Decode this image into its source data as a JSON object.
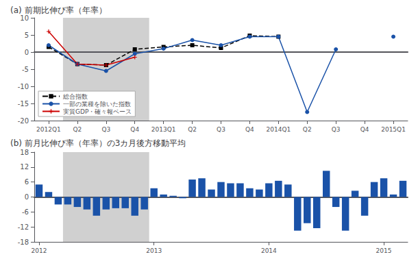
{
  "chart_data": [
    {
      "type": "line",
      "title": "(a) 前期比伸び率（年率）",
      "categories": [
        "2012Q1",
        "Q2",
        "Q3",
        "Q4",
        "2013Q1",
        "Q2",
        "Q3",
        "Q4",
        "2014Q1",
        "Q2",
        "Q3",
        "Q4",
        "2015Q1"
      ],
      "series": [
        {
          "name": "総合指数",
          "color": "#000000",
          "marker": "square",
          "line_style": "dashed",
          "values": [
            1.5,
            -3.5,
            -3.8,
            0.8,
            1.5,
            2.0,
            1.2,
            4.8,
            4.5,
            null,
            null,
            null,
            null
          ]
        },
        {
          "name": "一部の業種を除いた指数",
          "color": "#1a52a8",
          "marker": "circle",
          "line_style": "solid",
          "values": [
            2.0,
            -3.5,
            -5.5,
            -0.5,
            1.0,
            3.5,
            2.0,
            4.5,
            4.5,
            -17.5,
            0.8,
            null,
            4.5
          ]
        },
        {
          "name": "実質GDP・確々報ベース",
          "color": "#cc0000",
          "marker": "plus",
          "line_style": "solid",
          "values": [
            6.0,
            -3.5,
            -3.8,
            -1.5,
            null,
            null,
            null,
            null,
            null,
            null,
            null,
            null,
            null
          ]
        }
      ],
      "ylim": [
        -20,
        10
      ],
      "yticks": [
        -20,
        -15,
        -10,
        -5,
        0,
        5,
        10
      ],
      "grid": false,
      "legend": "lower left",
      "shaded": [
        false,
        true,
        true,
        true,
        false,
        false,
        false,
        false,
        false,
        false,
        false,
        false,
        false
      ],
      "shade_color": "#d0d0d0"
    },
    {
      "type": "bar",
      "title": "(b) 前月比伸び率（年率）の3カ月後方移動平均",
      "categories": [
        "2012",
        null,
        null,
        null,
        null,
        null,
        null,
        null,
        null,
        null,
        null,
        null,
        "2013",
        null,
        null,
        null,
        null,
        null,
        null,
        null,
        null,
        null,
        null,
        null,
        "2014",
        null,
        null,
        null,
        null,
        null,
        null,
        null,
        null,
        null,
        null,
        null,
        "2015",
        null,
        null
      ],
      "values": [
        5.0,
        2.0,
        -3.0,
        -3.0,
        -4.0,
        -5.0,
        -7.5,
        -5.0,
        -4.5,
        -4.5,
        -7.5,
        -5.0,
        3.5,
        1.0,
        0.5,
        -0.5,
        7.0,
        7.5,
        3.0,
        6.0,
        5.5,
        5.5,
        3.5,
        3.0,
        5.5,
        6.5,
        5.0,
        -13.5,
        -10.5,
        -12.5,
        10.5,
        -4.0,
        -13.5,
        2.5,
        -7.5,
        6.0,
        7.5,
        1.0,
        6.5
      ],
      "color": "#1a52a8",
      "ylim": [
        -18,
        18
      ],
      "yticks": [
        -18,
        -12,
        -6,
        0,
        6,
        12,
        18
      ],
      "grid": false,
      "shaded": [
        false,
        false,
        false,
        true,
        true,
        true,
        true,
        true,
        true,
        true,
        true,
        true,
        false,
        false,
        false,
        false,
        false,
        false,
        false,
        false,
        false,
        false,
        false,
        false,
        false,
        false,
        false,
        false,
        false,
        false,
        false,
        false,
        false,
        false,
        false,
        false,
        false,
        false,
        false
      ],
      "shade_color": "#d0d0d0"
    }
  ]
}
